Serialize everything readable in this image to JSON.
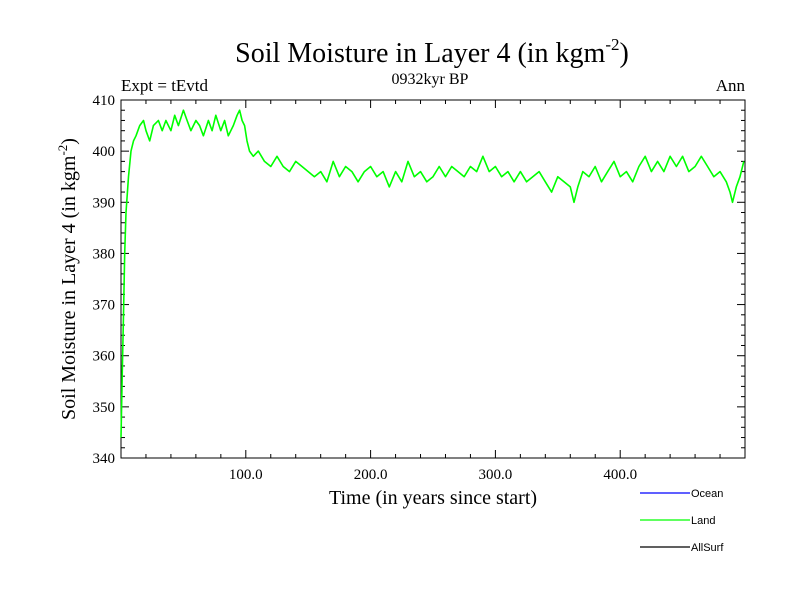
{
  "chart_data": {
    "type": "line",
    "title": "Soil Moisture in Layer 4 (in kgm",
    "title_superscript": "-2",
    "title_close": ")",
    "top_left_label": "Expt = tEvtd",
    "top_center_label": "0932kyr BP",
    "top_right_label": "Ann",
    "xlabel": "Time (in years since start)",
    "ylabel": "Soil Moisture in Layer 4 (in kgm",
    "ylabel_superscript": "-2",
    "ylabel_close": ")",
    "xlim": [
      0,
      500
    ],
    "ylim": [
      340,
      410
    ],
    "x_ticks": [
      {
        "value": 100,
        "label": "100.0"
      },
      {
        "value": 200,
        "label": "200.0"
      },
      {
        "value": 300,
        "label": "300.0"
      },
      {
        "value": 400,
        "label": "400.0"
      }
    ],
    "y_ticks": [
      {
        "value": 340,
        "label": "340"
      },
      {
        "value": 350,
        "label": "350"
      },
      {
        "value": 360,
        "label": "360"
      },
      {
        "value": 370,
        "label": "370"
      },
      {
        "value": 380,
        "label": "380"
      },
      {
        "value": 390,
        "label": "390"
      },
      {
        "value": 400,
        "label": "400"
      },
      {
        "value": 410,
        "label": "410"
      }
    ],
    "series": [
      {
        "name": "Land",
        "color": "#00ff00",
        "x": [
          0,
          1,
          2,
          3,
          4,
          6,
          8,
          10,
          12,
          15,
          18,
          20,
          23,
          26,
          30,
          33,
          36,
          40,
          43,
          46,
          50,
          53,
          56,
          60,
          63,
          66,
          70,
          73,
          76,
          80,
          83,
          86,
          90,
          93,
          95,
          97,
          99,
          101,
          103,
          106,
          110,
          115,
          120,
          125,
          130,
          135,
          140,
          145,
          150,
          155,
          160,
          165,
          170,
          175,
          180,
          185,
          190,
          195,
          200,
          205,
          210,
          215,
          220,
          225,
          230,
          235,
          240,
          245,
          250,
          255,
          260,
          265,
          270,
          275,
          280,
          285,
          290,
          295,
          300,
          305,
          310,
          315,
          320,
          325,
          330,
          335,
          340,
          345,
          350,
          355,
          360,
          363,
          366,
          370,
          375,
          380,
          385,
          390,
          395,
          400,
          405,
          410,
          415,
          420,
          425,
          430,
          435,
          440,
          445,
          450,
          455,
          460,
          465,
          470,
          475,
          480,
          485,
          488,
          490,
          493,
          496,
          499
        ],
        "values": [
          344,
          356,
          368,
          380,
          388,
          395,
          400,
          402,
          403,
          405,
          406,
          404,
          402,
          405,
          406,
          404,
          406,
          404,
          407,
          405,
          408,
          406,
          404,
          406,
          405,
          403,
          406,
          404,
          407,
          404,
          406,
          403,
          405,
          407,
          408,
          406,
          405,
          402,
          400,
          399,
          400,
          398,
          397,
          399,
          397,
          396,
          398,
          397,
          396,
          395,
          396,
          394,
          398,
          395,
          397,
          396,
          394,
          396,
          397,
          395,
          396,
          393,
          396,
          394,
          398,
          395,
          396,
          394,
          395,
          397,
          395,
          397,
          396,
          395,
          397,
          396,
          399,
          396,
          397,
          395,
          396,
          394,
          396,
          394,
          395,
          396,
          394,
          392,
          395,
          394,
          393,
          390,
          393,
          396,
          395,
          397,
          394,
          396,
          398,
          395,
          396,
          394,
          397,
          399,
          396,
          398,
          396,
          399,
          397,
          399,
          396,
          397,
          399,
          397,
          395,
          396,
          394,
          392,
          390,
          393,
          395,
          398
        ]
      }
    ],
    "legend": [
      {
        "name": "Ocean",
        "color": "#0000ff"
      },
      {
        "name": "Land",
        "color": "#00ff00"
      },
      {
        "name": "AllSurf",
        "color": "#000000"
      }
    ]
  }
}
